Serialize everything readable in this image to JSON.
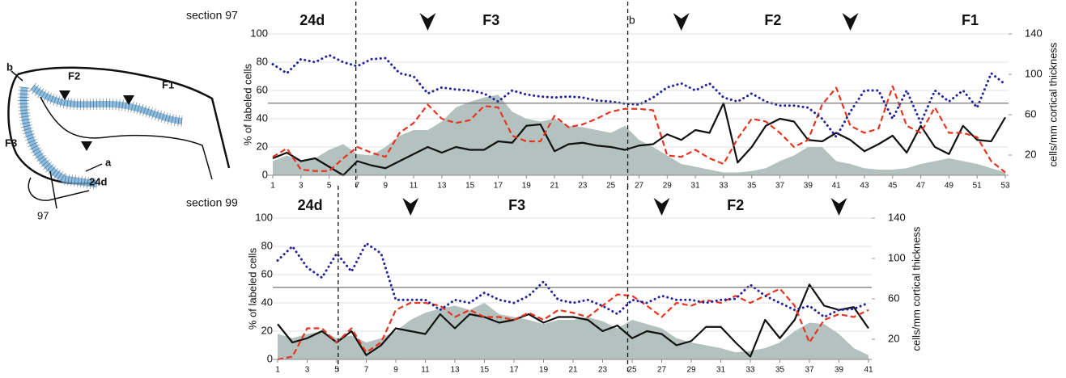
{
  "diagram": {
    "labels": [
      "b",
      "F2",
      "F1",
      "F3",
      "a",
      "24d",
      "97"
    ]
  },
  "chart_data": [
    {
      "type": "line",
      "section": "section 97",
      "ylabel": "% of labeled cells",
      "y2label": "cells/mm cortical thickness",
      "annotations": [
        "24d",
        "F3",
        "b",
        "F2",
        "F1"
      ],
      "x": [
        1,
        2,
        3,
        4,
        5,
        6,
        7,
        8,
        9,
        10,
        11,
        12,
        13,
        14,
        15,
        16,
        17,
        18,
        19,
        20,
        21,
        22,
        23,
        24,
        25,
        26,
        27,
        28,
        29,
        30,
        31,
        32,
        33,
        34,
        35,
        36,
        37,
        38,
        39,
        40,
        41,
        42,
        43,
        44,
        45,
        46,
        47,
        48,
        49,
        50,
        51,
        52,
        53
      ],
      "xlim": [
        1,
        53
      ],
      "xticks": [
        1,
        3,
        5,
        7,
        9,
        11,
        13,
        15,
        17,
        19,
        21,
        23,
        25,
        27,
        29,
        31,
        33,
        35,
        37,
        39,
        41,
        43,
        45,
        47,
        49,
        51,
        53
      ],
      "ylim": [
        0,
        100
      ],
      "yticks": [
        0,
        20,
        40,
        60,
        80,
        100
      ],
      "y2lim": [
        0,
        140
      ],
      "y2ticks": [
        20,
        60,
        100,
        140
      ],
      "grid": true,
      "hline": 51,
      "series": [
        {
          "style": "area",
          "color": "#b3c1bf",
          "values": [
            10,
            14,
            10,
            12,
            18,
            22,
            15,
            14,
            20,
            28,
            32,
            32,
            38,
            48,
            52,
            55,
            57,
            45,
            40,
            38,
            40,
            35,
            34,
            32,
            30,
            35,
            25,
            20,
            14,
            8,
            6,
            4,
            2,
            2,
            3,
            5,
            10,
            14,
            20,
            20,
            10,
            8,
            5,
            4,
            4,
            5,
            8,
            10,
            12,
            10,
            8,
            5,
            2
          ]
        },
        {
          "style": "solid",
          "color": "#111111",
          "values": [
            12,
            16,
            10,
            12,
            6,
            0,
            10,
            7,
            5,
            10,
            15,
            20,
            16,
            20,
            18,
            18,
            24,
            23,
            35,
            36,
            17,
            22,
            23,
            21,
            20,
            18,
            21,
            22,
            29,
            25,
            32,
            30,
            51,
            9,
            20,
            35,
            40,
            38,
            25,
            24,
            30,
            25,
            17,
            22,
            28,
            16,
            35,
            20,
            15,
            35,
            25,
            24,
            41
          ]
        },
        {
          "style": "dashed",
          "color": "#e8341f",
          "values": [
            13,
            19,
            4,
            3,
            3,
            12,
            20,
            16,
            13,
            30,
            37,
            50,
            40,
            37,
            39,
            49,
            48,
            28,
            24,
            24,
            42,
            34,
            36,
            40,
            45,
            47,
            47,
            46,
            14,
            13,
            18,
            12,
            8,
            26,
            40,
            38,
            30,
            20,
            25,
            50,
            62,
            35,
            30,
            33,
            63,
            35,
            30,
            48,
            30,
            30,
            27,
            10,
            2
          ]
        },
        {
          "style": "dotted",
          "color": "#23239a",
          "axis": "y2",
          "values": [
            110,
            101,
            115,
            112,
            119,
            112,
            108,
            115,
            116,
            101,
            98,
            81,
            87,
            85,
            84,
            81,
            73,
            84,
            80,
            78,
            77,
            78,
            77,
            74,
            73,
            71,
            70,
            77,
            87,
            91,
            84,
            91,
            77,
            73,
            81,
            73,
            69,
            69,
            67,
            56,
            38,
            63,
            84,
            84,
            56,
            84,
            52,
            84,
            73,
            84,
            67,
            101,
            90
          ]
        }
      ]
    },
    {
      "type": "line",
      "section": "section 99",
      "ylabel": "% of labeled cells",
      "y2label": "cells/mm cortical thickness",
      "annotations": [
        "24d",
        "F3",
        "F2"
      ],
      "x": [
        1,
        2,
        3,
        4,
        5,
        6,
        7,
        8,
        9,
        10,
        11,
        12,
        13,
        14,
        15,
        16,
        17,
        18,
        19,
        20,
        21,
        22,
        23,
        24,
        25,
        26,
        27,
        28,
        29,
        30,
        31,
        32,
        33,
        34,
        35,
        36,
        37,
        38,
        39,
        40,
        41
      ],
      "xlim": [
        1,
        41
      ],
      "xticks": [
        1,
        3,
        5,
        7,
        9,
        11,
        13,
        15,
        17,
        19,
        21,
        23,
        25,
        27,
        29,
        31,
        33,
        35,
        37,
        39,
        41
      ],
      "ylim": [
        0,
        100
      ],
      "yticks": [
        0,
        20,
        40,
        60,
        80,
        100
      ],
      "y2lim": [
        0,
        140
      ],
      "y2ticks": [
        20,
        60,
        100,
        140
      ],
      "grid": true,
      "hline": 51,
      "series": [
        {
          "style": "area",
          "color": "#b3c1bf",
          "values": [
            18,
            15,
            18,
            20,
            15,
            17,
            12,
            15,
            20,
            28,
            33,
            36,
            38,
            35,
            40,
            32,
            30,
            28,
            25,
            28,
            28,
            30,
            27,
            22,
            28,
            25,
            22,
            15,
            12,
            10,
            8,
            5,
            6,
            8,
            12,
            20,
            26,
            25,
            18,
            8,
            3
          ]
        },
        {
          "style": "solid",
          "color": "#111111",
          "values": [
            25,
            12,
            15,
            20,
            12,
            20,
            3,
            10,
            22,
            20,
            18,
            32,
            22,
            32,
            30,
            26,
            28,
            32,
            26,
            30,
            30,
            28,
            20,
            24,
            15,
            20,
            18,
            10,
            13,
            23,
            23,
            12,
            2,
            28,
            15,
            28,
            53,
            38,
            35,
            37,
            22
          ]
        },
        {
          "style": "dashed",
          "color": "#e8341f",
          "values": [
            0,
            2,
            22,
            22,
            12,
            22,
            5,
            12,
            35,
            40,
            40,
            38,
            30,
            35,
            30,
            30,
            28,
            33,
            28,
            35,
            33,
            30,
            38,
            46,
            45,
            38,
            30,
            40,
            38,
            42,
            40,
            45,
            40,
            45,
            50,
            38,
            12,
            28,
            32,
            30,
            35
          ]
        },
        {
          "style": "dotted",
          "color": "#23239a",
          "axis": "y2",
          "values": [
            98,
            112,
            91,
            81,
            105,
            87,
            115,
            105,
            59,
            59,
            59,
            49,
            59,
            56,
            66,
            59,
            56,
            63,
            77,
            59,
            56,
            59,
            53,
            45,
            59,
            56,
            63,
            59,
            59,
            56,
            59,
            60,
            74,
            63,
            56,
            49,
            53,
            42,
            49,
            50,
            56
          ]
        }
      ]
    }
  ]
}
